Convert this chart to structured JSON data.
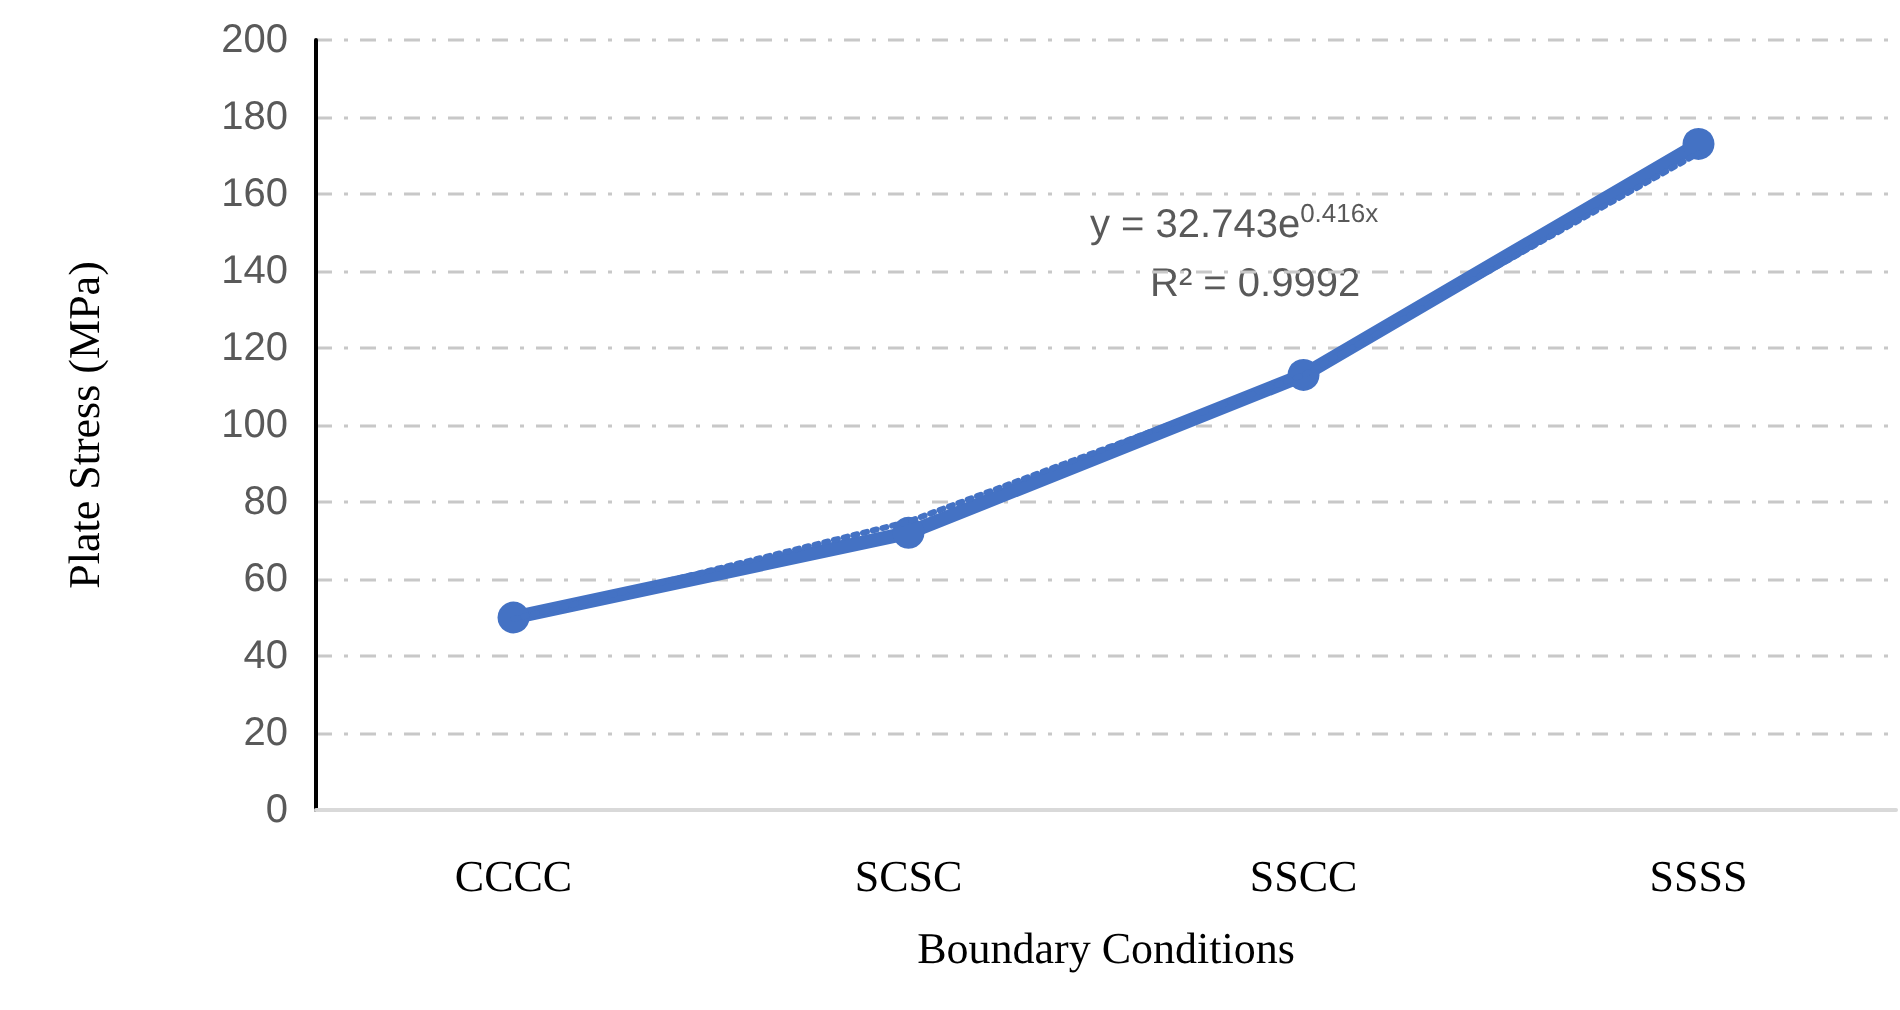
{
  "chart_data": {
    "type": "line",
    "xlabel": "Boundary Conditions",
    "ylabel": "Plate Stress (MPa)",
    "categories": [
      "CCCC",
      "SCSC",
      "SSCC",
      "SSSS"
    ],
    "series": [
      {
        "color": "#4472c4",
        "values": [
          50,
          72,
          113,
          173
        ],
        "marker": "circle",
        "line_style": "solid"
      },
      {
        "color": "#4472c4",
        "x": [
          "CCCC",
          "SCSC",
          "SSCC",
          "SSSS"
        ],
        "values": [
          49.6,
          74.9,
          113,
          170.6
        ],
        "marker": "none",
        "line_style": "dotted"
      }
    ],
    "annotations": [
      "y = 32.743e$^{0.416x}$",
      "R² = 0.9992"
    ],
    "ylim": [
      0,
      200
    ],
    "yticks": [
      0,
      20,
      40,
      60,
      80,
      100,
      120,
      140,
      160,
      180,
      200
    ],
    "grid": "y"
  }
}
